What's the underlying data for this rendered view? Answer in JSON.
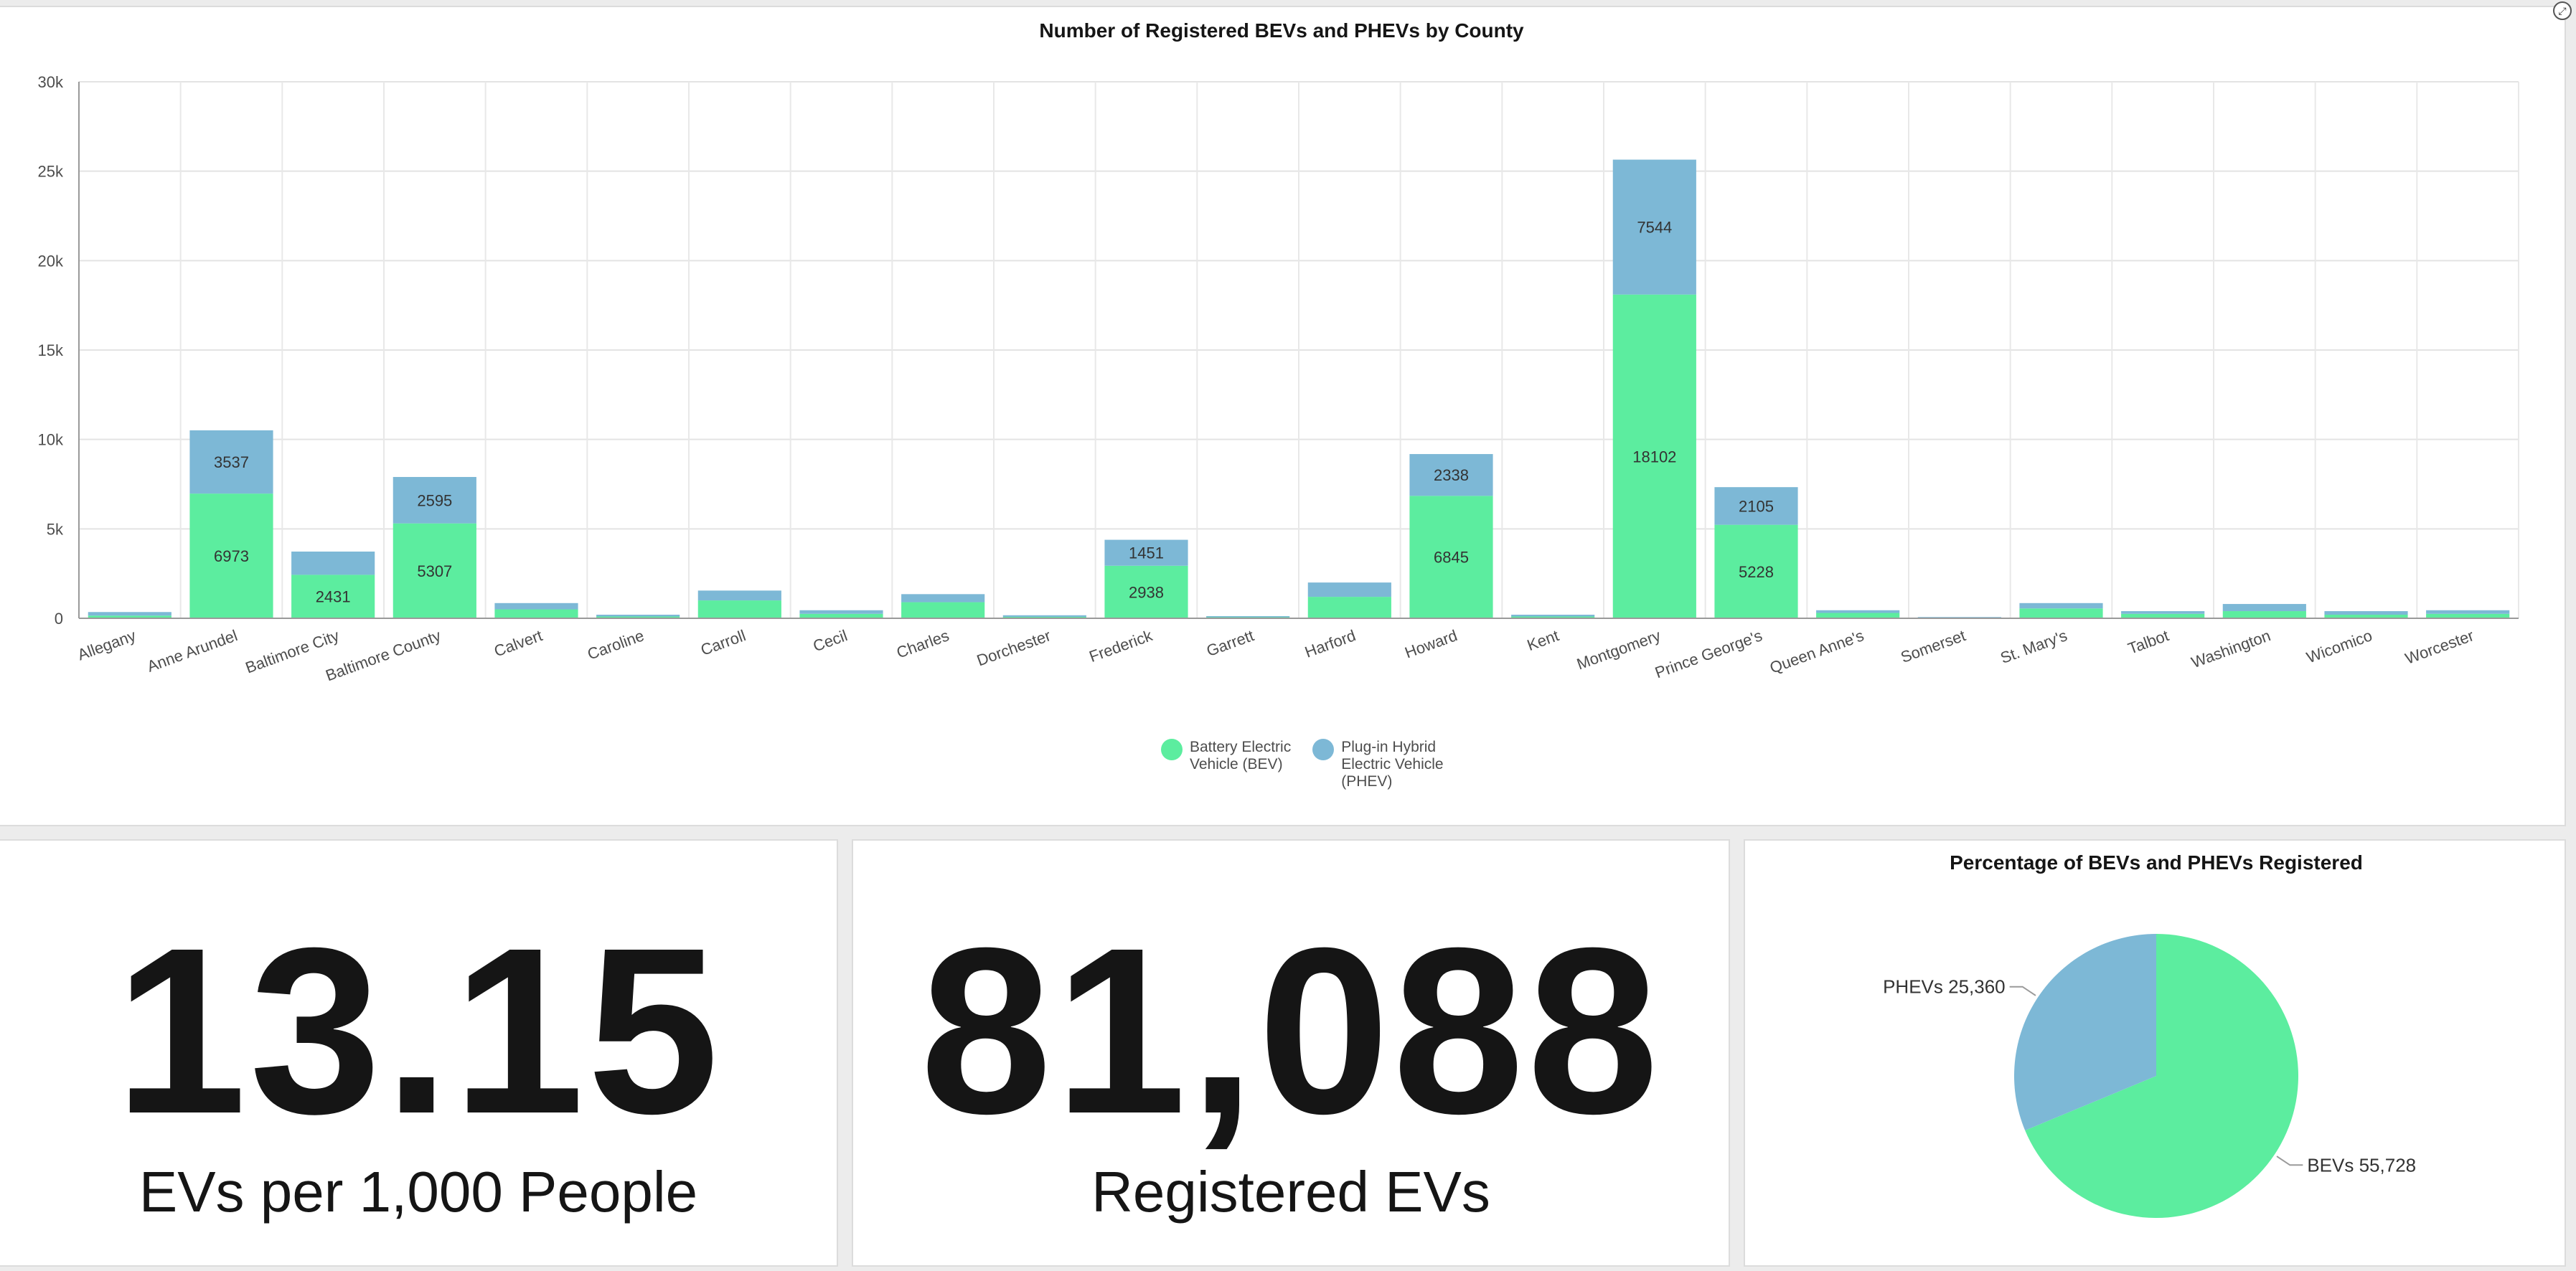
{
  "chart_data": [
    {
      "type": "bar",
      "stacked": true,
      "title": "Number of Registered BEVs and PHEVs by County",
      "categories": [
        "Allegany",
        "Anne Arundel",
        "Baltimore City",
        "Baltimore County",
        "Calvert",
        "Caroline",
        "Carroll",
        "Cecil",
        "Charles",
        "Dorchester",
        "Frederick",
        "Garrett",
        "Harford",
        "Howard",
        "Kent",
        "Montgomery",
        "Prince George's",
        "Queen Anne's",
        "Somerset",
        "St. Mary's",
        "Talbot",
        "Washington",
        "Wicomico",
        "Worcester"
      ],
      "series": [
        {
          "name": "Battery Electric Vehicle (BEV)",
          "color": "#5ced9f",
          "values": [
            150,
            6973,
            2431,
            5307,
            500,
            100,
            1000,
            250,
            900,
            80,
            2938,
            60,
            1200,
            6845,
            100,
            18102,
            5228,
            300,
            40,
            550,
            250,
            400,
            200,
            250
          ]
        },
        {
          "name": "Plug-in Hybrid Electric Vehicle (PHEV)",
          "color": "#7db8d6",
          "values": [
            200,
            3537,
            1300,
            2595,
            350,
            100,
            550,
            200,
            450,
            90,
            1451,
            60,
            800,
            2338,
            100,
            7544,
            2105,
            150,
            30,
            300,
            150,
            400,
            200,
            200
          ]
        }
      ],
      "data_labels": {
        "Anne Arundel": {
          "bev": "6973",
          "phev": "3537"
        },
        "Baltimore City": {
          "bev": "2431"
        },
        "Baltimore County": {
          "bev": "5307",
          "phev": "2595"
        },
        "Frederick": {
          "bev": "2938",
          "phev": "1451"
        },
        "Howard": {
          "bev": "6845",
          "phev": "2338"
        },
        "Montgomery": {
          "bev": "18102",
          "phev": "7544"
        },
        "Prince George's": {
          "bev": "5228",
          "phev": "2105"
        }
      },
      "yticks": [
        "0",
        "5k",
        "10k",
        "15k",
        "20k",
        "25k",
        "30k"
      ],
      "ylim": [
        0,
        30000
      ],
      "grid": true,
      "legend": {
        "placement": "bottom-center",
        "items": [
          {
            "line1": "Battery Electric",
            "line2": "Vehicle (BEV)",
            "line3": ""
          },
          {
            "line1": "Plug-in Hybrid",
            "line2": "Electric Vehicle",
            "line3": "(PHEV)"
          }
        ]
      }
    },
    {
      "type": "pie",
      "title": "Percentage of BEVs and PHEVs Registered",
      "slices": [
        {
          "label": "BEVs 55,728",
          "value": 55728,
          "color": "#5ced9f"
        },
        {
          "label": "PHEVs 25,360",
          "value": 25360,
          "color": "#7db8d6"
        }
      ]
    }
  ],
  "kpis": {
    "evs_per_1000": {
      "value": "13.15",
      "label": "EVs per 1,000 People"
    },
    "registered_evs": {
      "value": "81,088",
      "label": "Registered EVs"
    }
  },
  "controls": {
    "corner_icon": "collapse-icon",
    "corner_glyph": "⤢"
  }
}
